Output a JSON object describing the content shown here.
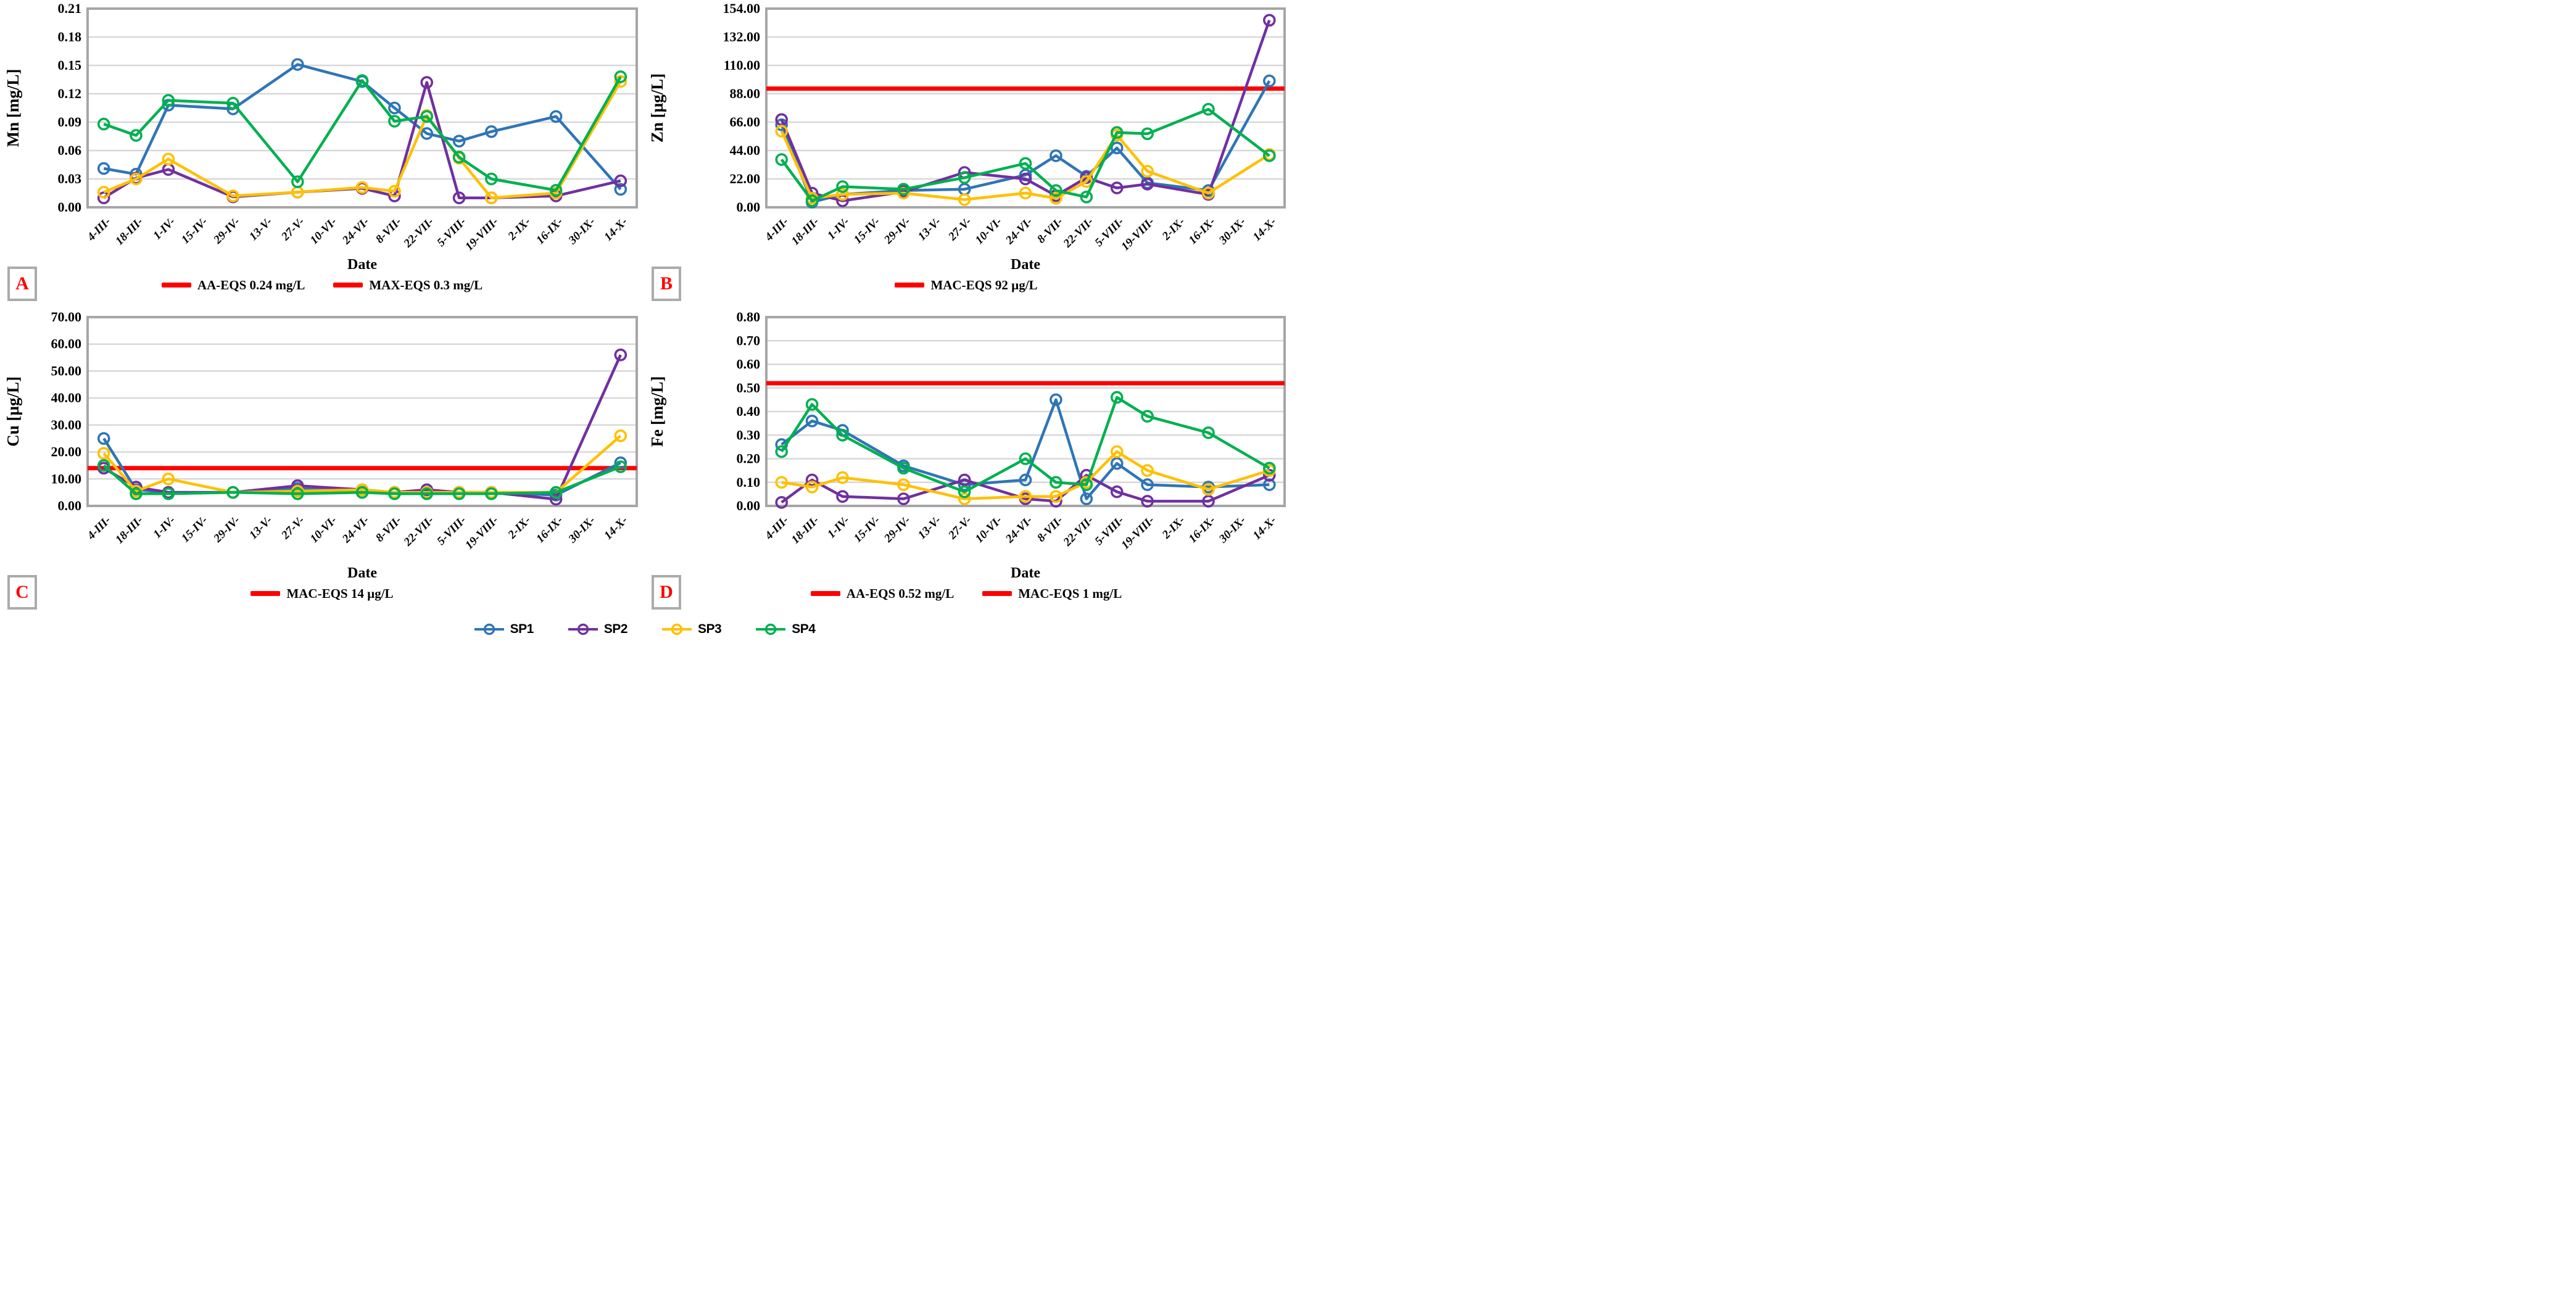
{
  "figure": {
    "date_axis_label": "Date",
    "categories": [
      "4-III-",
      "18-III-",
      "1-IV-",
      "15-IV-",
      "29-IV-",
      "13-V-",
      "27-V-",
      "10-VI-",
      "24-VI-",
      "8-VII-",
      "22-VII-",
      "5-VIII-",
      "19-VIII-",
      "2-IX-",
      "16-IX-",
      "30-IX-",
      "14-X-"
    ],
    "colors": {
      "sp1_blue": "#2E75B6",
      "sp2_purple": "#7030A0",
      "sp3_yellow": "#FFC000",
      "sp4_green": "#00B050",
      "eqs_red": "#FF0000",
      "gridline": "#D8D8D8",
      "axis_border": "#A6A6A6",
      "panel_letter": "#FF0000"
    }
  },
  "chart_data": [
    {
      "type": "line",
      "panel": "A",
      "ylabel": "Mn [mg/L]",
      "xlabel": "Date",
      "ylim": [
        0,
        0.21
      ],
      "ytick_step": 0.03,
      "ytick_decimals": 2,
      "grid": true,
      "categories": [
        "4-III-",
        "18-III-",
        "1-IV-",
        "15-IV-",
        "29-IV-",
        "13-V-",
        "27-V-",
        "10-VI-",
        "24-VI-",
        "8-VII-",
        "22-VII-",
        "5-VIII-",
        "19-VIII-",
        "2-IX-",
        "16-IX-",
        "30-IX-",
        "14-X-"
      ],
      "eqs_lines": [
        {
          "label": "AA-EQS 0.24 mg/L",
          "value": 0.24
        },
        {
          "label": "MAX-EQS 0.3 mg/L",
          "value": 0.3
        }
      ],
      "series": [
        {
          "name": "SP1",
          "color": "#2E75B6",
          "values": [
            0.041,
            0.035,
            0.108,
            null,
            0.104,
            null,
            0.151,
            null,
            0.133,
            0.105,
            0.078,
            0.07,
            0.08,
            null,
            0.096,
            null,
            0.019
          ]
        },
        {
          "name": "SP2",
          "color": "#7030A0",
          "values": [
            0.01,
            0.031,
            0.04,
            null,
            0.011,
            null,
            0.016,
            null,
            0.02,
            0.012,
            0.132,
            0.01,
            0.01,
            null,
            0.012,
            null,
            0.028
          ]
        },
        {
          "name": "SP3",
          "color": "#FFC000",
          "values": [
            0.016,
            0.03,
            0.051,
            null,
            0.012,
            null,
            0.016,
            null,
            0.021,
            0.017,
            0.097,
            0.052,
            0.01,
            null,
            0.015,
            null,
            0.133
          ]
        },
        {
          "name": "SP4",
          "color": "#00B050",
          "values": [
            0.088,
            0.076,
            0.113,
            null,
            0.11,
            null,
            0.027,
            null,
            0.134,
            0.091,
            0.096,
            0.053,
            0.03,
            null,
            0.018,
            null,
            0.138
          ]
        }
      ]
    },
    {
      "type": "line",
      "panel": "B",
      "ylabel": "Zn [µg/L]",
      "xlabel": "Date",
      "ylim": [
        0,
        154
      ],
      "ytick_step": 22,
      "ytick_decimals": 2,
      "grid": true,
      "categories": [
        "4-III-",
        "18-III-",
        "1-IV-",
        "15-IV-",
        "29-IV-",
        "13-V-",
        "27-V-",
        "10-VI-",
        "24-VI-",
        "8-VII-",
        "22-VII-",
        "5-VIII-",
        "19-VIII-",
        "2-IX-",
        "16-IX-",
        "30-IX-",
        "14-X-"
      ],
      "eqs_lines": [
        {
          "label": "MAC-EQS 92 µg/L",
          "value": 92
        }
      ],
      "series": [
        {
          "name": "SP1",
          "color": "#2E75B6",
          "values": [
            64,
            4,
            10,
            null,
            13,
            null,
            14,
            null,
            25,
            40,
            24,
            46,
            19,
            null,
            13,
            null,
            98
          ]
        },
        {
          "name": "SP2",
          "color": "#7030A0",
          "values": [
            68,
            11,
            5,
            null,
            12,
            null,
            27,
            null,
            22,
            9,
            23,
            15,
            18,
            null,
            10,
            null,
            145
          ]
        },
        {
          "name": "SP3",
          "color": "#FFC000",
          "values": [
            59,
            7,
            10,
            null,
            11,
            null,
            6,
            null,
            11,
            7,
            20,
            56,
            28,
            null,
            11,
            null,
            41
          ]
        },
        {
          "name": "SP4",
          "color": "#00B050",
          "values": [
            37,
            5,
            16,
            null,
            14,
            null,
            23,
            null,
            34,
            13,
            8,
            58,
            57,
            null,
            76,
            null,
            40
          ]
        }
      ]
    },
    {
      "type": "line",
      "panel": "C",
      "ylabel": "Cu [µg/L]",
      "xlabel": "Date",
      "ylim": [
        0,
        70
      ],
      "ytick_step": 10,
      "ytick_decimals": 2,
      "grid": true,
      "categories": [
        "4-III-",
        "18-III-",
        "1-IV-",
        "15-IV-",
        "29-IV-",
        "13-V-",
        "27-V-",
        "10-VI-",
        "24-VI-",
        "8-VII-",
        "22-VII-",
        "5-VIII-",
        "19-VIII-",
        "2-IX-",
        "16-IX-",
        "30-IX-",
        "14-X-"
      ],
      "eqs_lines": [
        {
          "label": "MAC-EQS 14 µg/L",
          "value": 14
        }
      ],
      "series": [
        {
          "name": "SP1",
          "color": "#2E75B6",
          "values": [
            25,
            6,
            5,
            null,
            5,
            null,
            6.5,
            null,
            5,
            5,
            5,
            5,
            5,
            null,
            4,
            null,
            16
          ]
        },
        {
          "name": "SP2",
          "color": "#7030A0",
          "values": [
            14,
            7,
            5,
            null,
            5,
            null,
            7.5,
            null,
            6,
            5,
            6,
            5,
            5,
            null,
            2.5,
            null,
            56
          ]
        },
        {
          "name": "SP3",
          "color": "#FFC000",
          "values": [
            19.5,
            5.5,
            10,
            null,
            5,
            null,
            5.5,
            null,
            6,
            5,
            5,
            5,
            5,
            null,
            5,
            null,
            26
          ]
        },
        {
          "name": "SP4",
          "color": "#00B050",
          "values": [
            15,
            4.5,
            4.5,
            null,
            5,
            null,
            4.5,
            null,
            5,
            4.5,
            4.5,
            4.5,
            4.5,
            null,
            5,
            null,
            14.5
          ]
        }
      ]
    },
    {
      "type": "line",
      "panel": "D",
      "ylabel": "Fe [mg/L]",
      "xlabel": "Date",
      "ylim": [
        0,
        0.8
      ],
      "ytick_step": 0.1,
      "ytick_decimals": 2,
      "grid": true,
      "categories": [
        "4-III-",
        "18-III-",
        "1-IV-",
        "15-IV-",
        "29-IV-",
        "13-V-",
        "27-V-",
        "10-VI-",
        "24-VI-",
        "8-VII-",
        "22-VII-",
        "5-VIII-",
        "19-VIII-",
        "2-IX-",
        "16-IX-",
        "30-IX-",
        "14-X-"
      ],
      "eqs_lines": [
        {
          "label": "AA-EQS 0.52 mg/L",
          "value": 0.52
        },
        {
          "label": "MAC-EQS 1 mg/L",
          "value": 1
        }
      ],
      "series": [
        {
          "name": "SP1",
          "color": "#2E75B6",
          "values": [
            0.26,
            0.36,
            0.32,
            null,
            0.17,
            null,
            0.09,
            null,
            0.11,
            0.45,
            0.03,
            0.18,
            0.09,
            null,
            0.08,
            null,
            0.09
          ]
        },
        {
          "name": "SP2",
          "color": "#7030A0",
          "values": [
            0.015,
            0.11,
            0.04,
            null,
            0.03,
            null,
            0.11,
            null,
            0.03,
            0.02,
            0.13,
            0.06,
            0.02,
            null,
            0.02,
            null,
            0.13
          ]
        },
        {
          "name": "SP3",
          "color": "#FFC000",
          "values": [
            0.1,
            0.08,
            0.12,
            null,
            0.09,
            null,
            0.03,
            null,
            0.04,
            0.04,
            0.1,
            0.23,
            0.15,
            null,
            0.07,
            null,
            0.15
          ]
        },
        {
          "name": "SP4",
          "color": "#00B050",
          "values": [
            0.23,
            0.43,
            0.3,
            null,
            0.16,
            null,
            0.06,
            null,
            0.2,
            0.1,
            0.09,
            0.46,
            0.38,
            null,
            0.31,
            null,
            0.16
          ]
        }
      ]
    }
  ],
  "series_legend": [
    {
      "label": "SP1",
      "color": "#2E75B6"
    },
    {
      "label": "SP2",
      "color": "#7030A0"
    },
    {
      "label": "SP3",
      "color": "#FFC000"
    },
    {
      "label": "SP4",
      "color": "#00B050"
    }
  ]
}
